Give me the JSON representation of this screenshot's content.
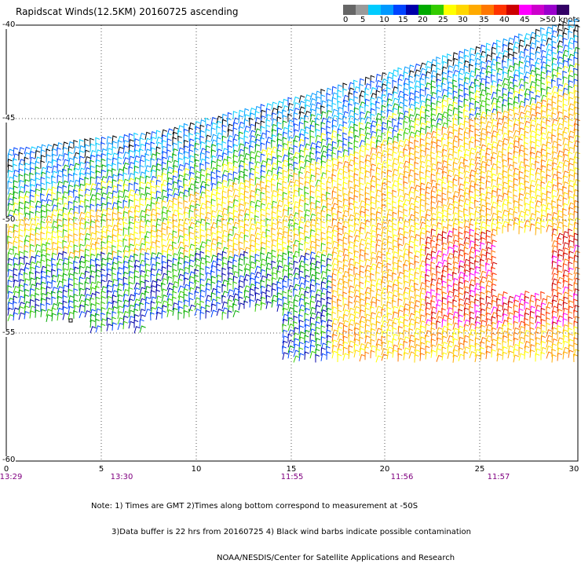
{
  "title": "Rapidscat Winds(12.5KM) 20160725 ascending",
  "legend": {
    "colors": [
      "#666666",
      "#9a9a9a",
      "#00ccff",
      "#0099ff",
      "#0044ff",
      "#0000aa",
      "#00aa00",
      "#33cc00",
      "#ffff00",
      "#ffd700",
      "#ffaa00",
      "#ff7700",
      "#ff3300",
      "#cc0000",
      "#ff00ff",
      "#cc00cc",
      "#9900cc",
      "#330066"
    ],
    "labels": [
      "0",
      "5",
      "10",
      "15",
      "20",
      "25",
      "30",
      "35",
      "40",
      "45",
      ">50 knots"
    ]
  },
  "axes": {
    "x_ticks": [
      "0",
      "5",
      "10",
      "15",
      "20",
      "25",
      "30"
    ],
    "y_ticks": [
      "-40",
      "-45",
      "-50",
      "-55",
      "-60"
    ],
    "x_range": [
      0,
      30
    ],
    "y_range": [
      -40,
      -60
    ],
    "grid": true
  },
  "time_labels": [
    "13:29",
    "13:30",
    "11:55",
    "11:56",
    "11:57"
  ],
  "notes": {
    "line1": "Note: 1) Times are GMT 2)Times along bottom correspond to measurement at -50S",
    "line2": "3)Data buffer is 22 hrs from 20160725 4) Black wind barbs indicate possible contamination",
    "line3": "NOAA/NESDIS/Center for Satellite Applications and Research"
  },
  "colors": {
    "grid": "#555555",
    "time_label": "#800080",
    "contamination": "#000000"
  }
}
